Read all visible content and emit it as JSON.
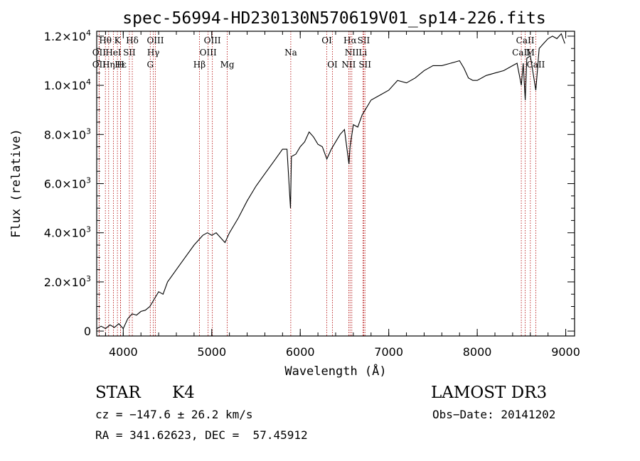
{
  "chart_data": {
    "type": "line",
    "title": "spec-56994-HD230130N570619V01_sp14-226.fits",
    "xlabel": "Wavelength (Å)",
    "ylabel": "Flux (relative)",
    "xlim": [
      3700,
      9100
    ],
    "ylim": [
      -200,
      12200
    ],
    "xticks": [
      {
        "value": 4000,
        "label": "4000"
      },
      {
        "value": 5000,
        "label": "5000"
      },
      {
        "value": 6000,
        "label": "6000"
      },
      {
        "value": 7000,
        "label": "7000"
      },
      {
        "value": 8000,
        "label": "8000"
      },
      {
        "value": 9000,
        "label": "9000"
      }
    ],
    "yticks": [
      {
        "value": 0,
        "mant": "0",
        "exp": ""
      },
      {
        "value": 2000,
        "mant": "2.0×10",
        "exp": "3"
      },
      {
        "value": 4000,
        "mant": "4.0×10",
        "exp": "3"
      },
      {
        "value": 6000,
        "mant": "6.0×10",
        "exp": "3"
      },
      {
        "value": 8000,
        "mant": "8.0×10",
        "exp": "3"
      },
      {
        "value": 10000,
        "mant": "1.0×10",
        "exp": "4"
      },
      {
        "value": 12000,
        "mant": "1.2×10",
        "exp": "4"
      }
    ],
    "spectrum": {
      "x": [
        3700,
        3750,
        3800,
        3850,
        3900,
        3950,
        4000,
        4050,
        4100,
        4150,
        4200,
        4250,
        4300,
        4350,
        4400,
        4450,
        4500,
        4600,
        4700,
        4800,
        4850,
        4900,
        4950,
        5000,
        5050,
        5100,
        5150,
        5200,
        5300,
        5400,
        5500,
        5600,
        5700,
        5800,
        5850,
        5890,
        5900,
        5950,
        6000,
        6050,
        6100,
        6150,
        6200,
        6250,
        6300,
        6350,
        6400,
        6450,
        6500,
        6550,
        6563,
        6600,
        6650,
        6700,
        6750,
        6800,
        6900,
        7000,
        7100,
        7200,
        7300,
        7400,
        7500,
        7600,
        7700,
        7800,
        7850,
        7900,
        7950,
        8000,
        8100,
        8200,
        8300,
        8400,
        8450,
        8498,
        8520,
        8542,
        8560,
        8600,
        8662,
        8700,
        8750,
        8800,
        8850,
        8900,
        8950,
        8990
      ],
      "y": [
        100,
        200,
        100,
        250,
        150,
        300,
        100,
        500,
        700,
        650,
        800,
        850,
        1000,
        1300,
        1600,
        1500,
        2000,
        2500,
        3000,
        3500,
        3700,
        3900,
        4000,
        3900,
        4000,
        3800,
        3600,
        4000,
        4600,
        5300,
        5900,
        6400,
        6900,
        7400,
        7400,
        5000,
        7100,
        7200,
        7500,
        7700,
        8100,
        7900,
        7600,
        7500,
        7000,
        7400,
        7700,
        8000,
        8200,
        6800,
        7500,
        8400,
        8300,
        8800,
        9100,
        9400,
        9600,
        9800,
        10200,
        10100,
        10300,
        10600,
        10800,
        10800,
        10900,
        11000,
        10700,
        10300,
        10200,
        10200,
        10400,
        10500,
        10600,
        10800,
        10900,
        10000,
        10900,
        9400,
        11100,
        11200,
        9800,
        11500,
        11700,
        11900,
        12000,
        11900,
        12100,
        11700
      ]
    },
    "lines": [
      {
        "label": "Hθ",
        "wave": 3798,
        "row": 0
      },
      {
        "label": "K",
        "wave": 3934,
        "row": 0
      },
      {
        "label": "Hδ",
        "wave": 4102,
        "row": 0
      },
      {
        "label": "OIII",
        "wave": 4363,
        "row": 0
      },
      {
        "label": "OIII",
        "wave": 5007,
        "row": 0
      },
      {
        "label": "OI",
        "wave": 6300,
        "row": 0
      },
      {
        "label": "Hα",
        "wave": 6563,
        "row": 0
      },
      {
        "label": "SII",
        "wave": 6717,
        "row": 0
      },
      {
        "label": "CaII",
        "wave": 8542,
        "row": 0
      },
      {
        "label": "OII",
        "wave": 3727,
        "row": 1
      },
      {
        "label": "HeI",
        "wave": 3889,
        "row": 1
      },
      {
        "label": "SII",
        "wave": 4069,
        "row": 1
      },
      {
        "label": "Hγ",
        "wave": 4340,
        "row": 1
      },
      {
        "label": "OIII",
        "wave": 4959,
        "row": 1
      },
      {
        "label": "Na",
        "wave": 5893,
        "row": 1
      },
      {
        "label": "NII",
        "wave": 6583,
        "row": 1
      },
      {
        "label": "Li",
        "wave": 6708,
        "row": 1
      },
      {
        "label": "CaII",
        "wave": 8498,
        "row": 1
      },
      {
        "label": "OII",
        "wave": 3727,
        "row": 2
      },
      {
        "label": "Hε",
        "wave": 3970,
        "row": 2
      },
      {
        "label": "Hη",
        "wave": 3835,
        "row": 2
      },
      {
        "label": "H",
        "wave": 3969,
        "row": 2
      },
      {
        "label": "G",
        "wave": 4305,
        "row": 2
      },
      {
        "label": "Hβ",
        "wave": 4861,
        "row": 2
      },
      {
        "label": "Mg",
        "wave": 5175,
        "row": 2
      },
      {
        "label": "OI",
        "wave": 6364,
        "row": 2
      },
      {
        "label": "NII",
        "wave": 6548,
        "row": 2
      },
      {
        "label": "SII",
        "wave": 6731,
        "row": 2
      },
      {
        "label": "CaII",
        "wave": 8662,
        "row": 2
      },
      {
        "label": "M",
        "wave": 8600,
        "row": 1
      }
    ]
  },
  "info": {
    "class": "STAR",
    "subclass": "K4",
    "survey": "LAMOST DR3",
    "redshift": "cz = −147.6 ± 26.2 km/s",
    "obsdate": "Obs−Date: 20141202",
    "coords": "RA = 341.62623, DEC =  57.45912"
  }
}
